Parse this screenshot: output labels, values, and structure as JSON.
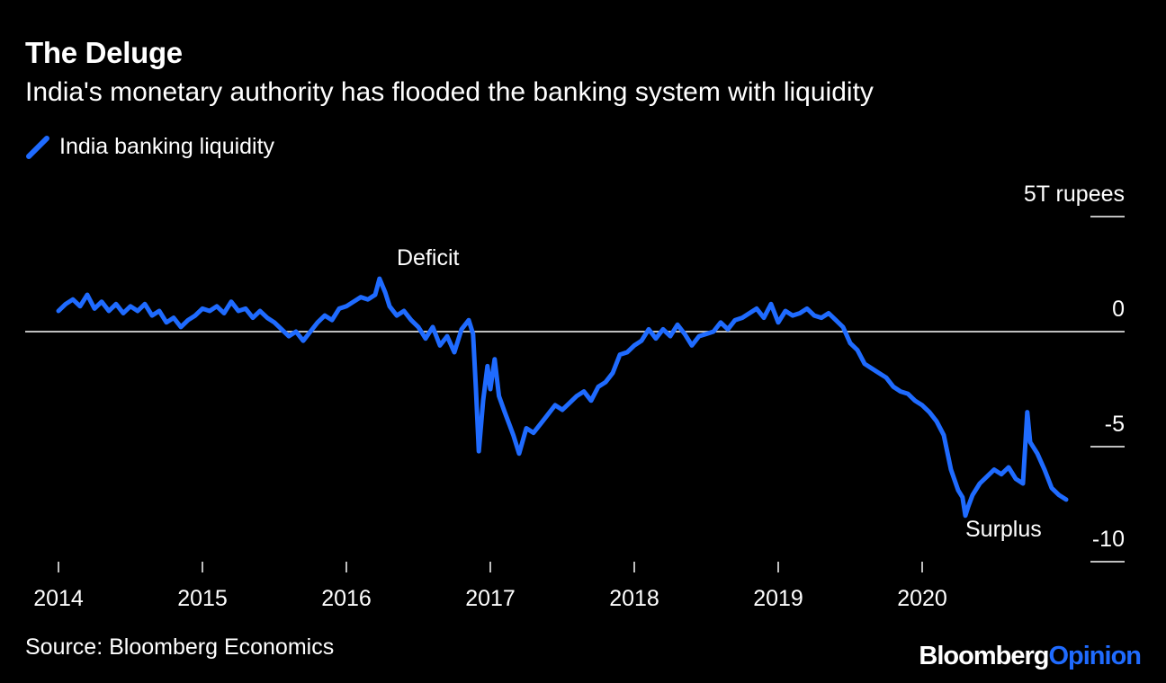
{
  "header": {
    "title": "The Deluge",
    "subtitle": "India's monetary authority has flooded the banking system with liquidity"
  },
  "footer": {
    "source": "Source: Bloomberg Economics",
    "brand_part1": "Bloomberg",
    "brand_part2": "Opinion"
  },
  "colors": {
    "background": "#000000",
    "line": "#1f6bff",
    "zero_line": "#bfbfbf",
    "text": "#ffffff"
  },
  "chart_data": {
    "type": "line",
    "title": "The Deluge",
    "subtitle": "India's monetary authority has flooded the banking system with liquidity",
    "ylabel": "",
    "y_unit_label": "5T rupees",
    "xlabel": "",
    "xlim": [
      2014.0,
      2021.1
    ],
    "ylim": [
      -10,
      5
    ],
    "y_ticks": [
      5,
      0,
      -5,
      -10
    ],
    "y_tick_labels": [
      "5T rupees",
      "0",
      "-5",
      "-10"
    ],
    "x_ticks": [
      2014,
      2015,
      2016,
      2017,
      2018,
      2019,
      2020
    ],
    "x_tick_labels": [
      "2014",
      "2015",
      "2016",
      "2017",
      "2018",
      "2019",
      "2020"
    ],
    "legend_position": "top-left",
    "grid": false,
    "zero_line": true,
    "annotations": [
      {
        "text": "Deficit",
        "x": 2016.35,
        "y": 2.9
      },
      {
        "text": "Surplus",
        "x": 2020.3,
        "y": -8.9
      }
    ],
    "series": [
      {
        "name": "India banking liquidity",
        "x": [
          2014.0,
          2014.05,
          2014.1,
          2014.15,
          2014.2,
          2014.25,
          2014.3,
          2014.35,
          2014.4,
          2014.45,
          2014.5,
          2014.55,
          2014.6,
          2014.65,
          2014.7,
          2014.75,
          2014.8,
          2014.85,
          2014.9,
          2014.95,
          2015.0,
          2015.05,
          2015.1,
          2015.15,
          2015.2,
          2015.25,
          2015.3,
          2015.35,
          2015.4,
          2015.45,
          2015.5,
          2015.55,
          2015.6,
          2015.65,
          2015.7,
          2015.75,
          2015.8,
          2015.85,
          2015.9,
          2015.95,
          2016.0,
          2016.05,
          2016.1,
          2016.15,
          2016.2,
          2016.23,
          2016.27,
          2016.3,
          2016.35,
          2016.4,
          2016.45,
          2016.5,
          2016.55,
          2016.6,
          2016.65,
          2016.7,
          2016.75,
          2016.8,
          2016.85,
          2016.88,
          2016.9,
          2016.92,
          2016.95,
          2016.98,
          2017.0,
          2017.03,
          2017.06,
          2017.1,
          2017.13,
          2017.16,
          2017.2,
          2017.25,
          2017.3,
          2017.35,
          2017.4,
          2017.45,
          2017.5,
          2017.55,
          2017.6,
          2017.65,
          2017.7,
          2017.75,
          2017.8,
          2017.85,
          2017.9,
          2017.95,
          2018.0,
          2018.05,
          2018.1,
          2018.15,
          2018.2,
          2018.25,
          2018.3,
          2018.35,
          2018.4,
          2018.45,
          2018.5,
          2018.55,
          2018.6,
          2018.65,
          2018.7,
          2018.75,
          2018.8,
          2018.85,
          2018.9,
          2018.95,
          2019.0,
          2019.05,
          2019.1,
          2019.15,
          2019.2,
          2019.25,
          2019.3,
          2019.35,
          2019.4,
          2019.45,
          2019.5,
          2019.55,
          2019.6,
          2019.65,
          2019.7,
          2019.75,
          2019.8,
          2019.85,
          2019.9,
          2019.95,
          2020.0,
          2020.05,
          2020.1,
          2020.15,
          2020.2,
          2020.25,
          2020.28,
          2020.3,
          2020.32,
          2020.35,
          2020.4,
          2020.45,
          2020.5,
          2020.55,
          2020.6,
          2020.65,
          2020.7,
          2020.73,
          2020.75,
          2020.8,
          2020.85,
          2020.9,
          2020.95,
          2021.0
        ],
        "values": [
          0.9,
          1.2,
          1.4,
          1.1,
          1.6,
          1.0,
          1.3,
          0.9,
          1.2,
          0.8,
          1.1,
          0.9,
          1.2,
          0.7,
          0.9,
          0.4,
          0.6,
          0.2,
          0.5,
          0.7,
          1.0,
          0.9,
          1.1,
          0.8,
          1.3,
          0.9,
          1.0,
          0.6,
          0.9,
          0.6,
          0.4,
          0.1,
          -0.2,
          0.0,
          -0.4,
          0.0,
          0.4,
          0.7,
          0.5,
          1.0,
          1.1,
          1.3,
          1.5,
          1.4,
          1.6,
          2.3,
          1.7,
          1.1,
          0.7,
          0.9,
          0.5,
          0.2,
          -0.3,
          0.2,
          -0.6,
          -0.2,
          -0.9,
          0.1,
          0.5,
          -0.1,
          -2.5,
          -5.2,
          -3.0,
          -1.5,
          -2.5,
          -1.2,
          -2.8,
          -3.5,
          -4.0,
          -4.5,
          -5.3,
          -4.2,
          -4.4,
          -4.0,
          -3.6,
          -3.2,
          -3.4,
          -3.1,
          -2.8,
          -2.6,
          -3.0,
          -2.4,
          -2.2,
          -1.8,
          -1.0,
          -0.9,
          -0.6,
          -0.4,
          0.1,
          -0.3,
          0.1,
          -0.2,
          0.3,
          -0.1,
          -0.6,
          -0.2,
          -0.1,
          0.0,
          0.4,
          0.1,
          0.5,
          0.6,
          0.8,
          1.0,
          0.6,
          1.2,
          0.4,
          0.9,
          0.7,
          0.8,
          1.0,
          0.7,
          0.6,
          0.8,
          0.5,
          0.2,
          -0.5,
          -0.8,
          -1.4,
          -1.6,
          -1.8,
          -2.0,
          -2.4,
          -2.6,
          -2.7,
          -3.0,
          -3.2,
          -3.5,
          -3.9,
          -4.5,
          -6.0,
          -6.9,
          -7.2,
          -8.0,
          -7.6,
          -7.1,
          -6.6,
          -6.3,
          -6.0,
          -6.2,
          -5.9,
          -6.4,
          -6.6,
          -3.5,
          -4.8,
          -5.3,
          -6.0,
          -6.8,
          -7.1,
          -7.3
        ]
      }
    ]
  }
}
